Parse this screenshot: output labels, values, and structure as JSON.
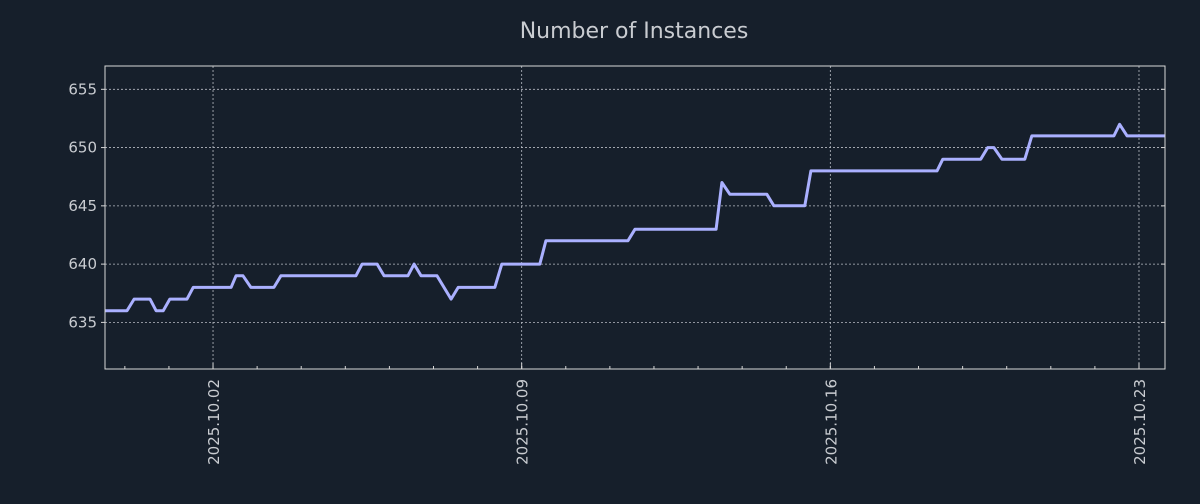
{
  "chart_data": {
    "type": "line",
    "title": "Number of Instances",
    "xlabel": "",
    "ylabel": "",
    "x_unit": "days since 2025-10-01 00:00",
    "xlim": [
      -1.45,
      22.59
    ],
    "ylim": [
      631,
      657
    ],
    "grid": true,
    "x_ticks": [
      {
        "value": 1,
        "label": "2025.10.02"
      },
      {
        "value": 8,
        "label": "2025.10.09"
      },
      {
        "value": 15,
        "label": "2025.10.16"
      },
      {
        "value": 22,
        "label": "2025.10.23"
      }
    ],
    "x_minor_tick_step": 1,
    "y_ticks": [
      {
        "value": 635,
        "label": "635"
      },
      {
        "value": 640,
        "label": "640"
      },
      {
        "value": 645,
        "label": "645"
      },
      {
        "value": 650,
        "label": "650"
      },
      {
        "value": 655,
        "label": "655"
      }
    ],
    "series": [
      {
        "name": "Number of Instances",
        "color": "#aab0ff",
        "x": [
          -1.45,
          -0.95,
          -0.79,
          -0.43,
          -0.29,
          -0.13,
          0.02,
          0.41,
          0.55,
          1.41,
          1.52,
          1.68,
          1.86,
          2.38,
          2.54,
          4.24,
          4.38,
          4.72,
          4.88,
          5.42,
          5.56,
          5.72,
          6.08,
          6.4,
          6.56,
          7.39,
          7.55,
          8.41,
          8.55,
          10.41,
          10.57,
          12.41,
          12.54,
          12.72,
          13.56,
          13.72,
          14.42,
          14.56,
          17.42,
          17.55,
          18.41,
          18.57,
          18.71,
          18.89,
          19.41,
          19.57,
          21.43,
          21.56,
          21.73,
          22.59
        ],
        "y": [
          636,
          636,
          637,
          637,
          636,
          636,
          637,
          637,
          638,
          638,
          639,
          639,
          638,
          638,
          639,
          639,
          640,
          640,
          639,
          639,
          640,
          639,
          639,
          637,
          638,
          638,
          640,
          640,
          642,
          642,
          643,
          643,
          647,
          646,
          646,
          645,
          645,
          648,
          648,
          649,
          649,
          650,
          650,
          649,
          649,
          651,
          651,
          652,
          651,
          651
        ]
      }
    ],
    "colors": {
      "background": "#161f2b",
      "text": "#c9ccd1",
      "axis": "#d8d8d8",
      "grid": "#b8bcc4"
    }
  }
}
